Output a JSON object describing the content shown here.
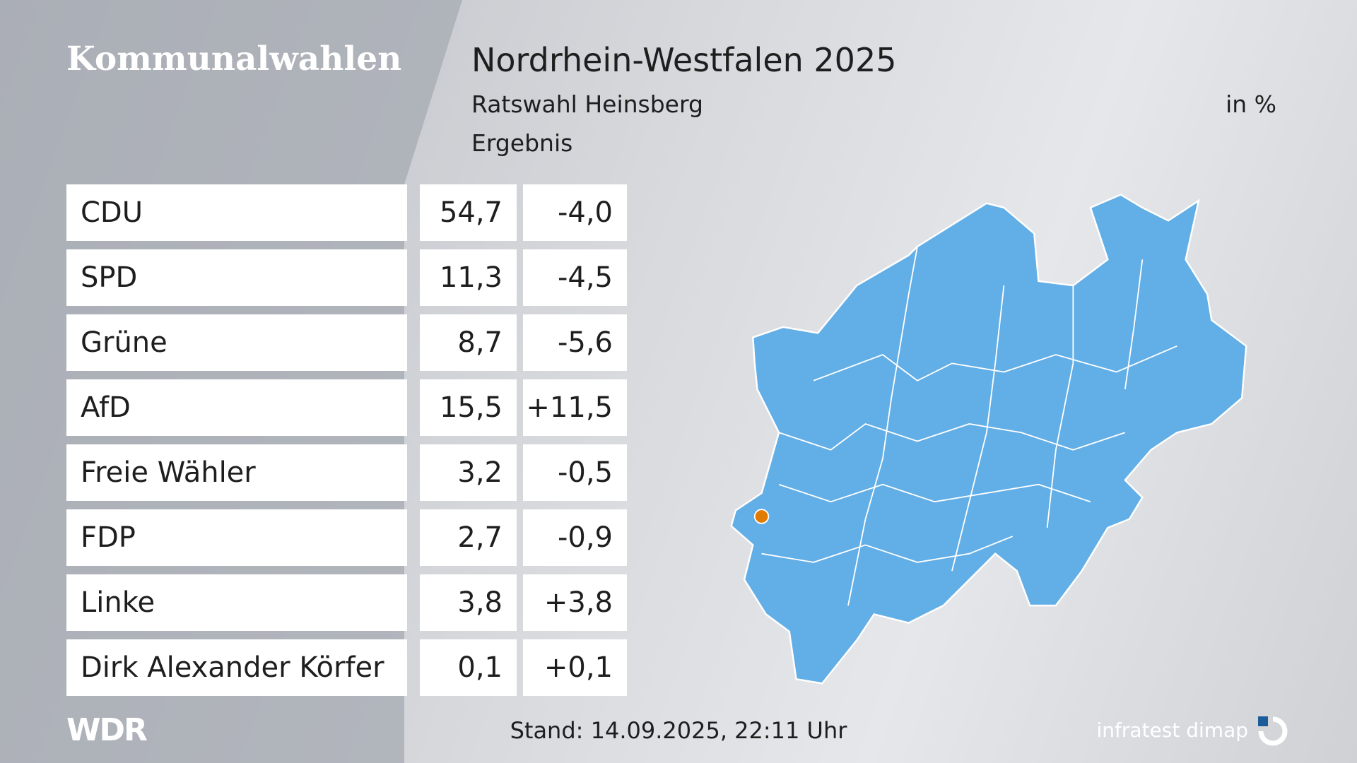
{
  "header": {
    "category": "Kommunalwahlen",
    "title": "Nordrhein-Westfalen 2025",
    "subtitle": "Ratswahl Heinsberg",
    "unit": "in %",
    "label": "Ergebnis"
  },
  "table": {
    "rows": [
      [
        "CDU",
        "54,7",
        "-4,0"
      ],
      [
        "SPD",
        "11,3",
        "-4,5"
      ],
      [
        "Grüne",
        "8,7",
        "-5,6"
      ],
      [
        "AfD",
        "15,5",
        "+11,5"
      ],
      [
        "Freie Wähler",
        "3,2",
        "-0,5"
      ],
      [
        "FDP",
        "2,7",
        "-0,9"
      ],
      [
        "Linke",
        "3,8",
        "+3,8"
      ],
      [
        "Dirk Alexander Körfer",
        "0,1",
        "+0,1"
      ]
    ]
  },
  "footer": {
    "logo": "WDR",
    "timestamp": "Stand: 14.09.2025, 22:11 Uhr",
    "source": "infratest dimap"
  }
}
